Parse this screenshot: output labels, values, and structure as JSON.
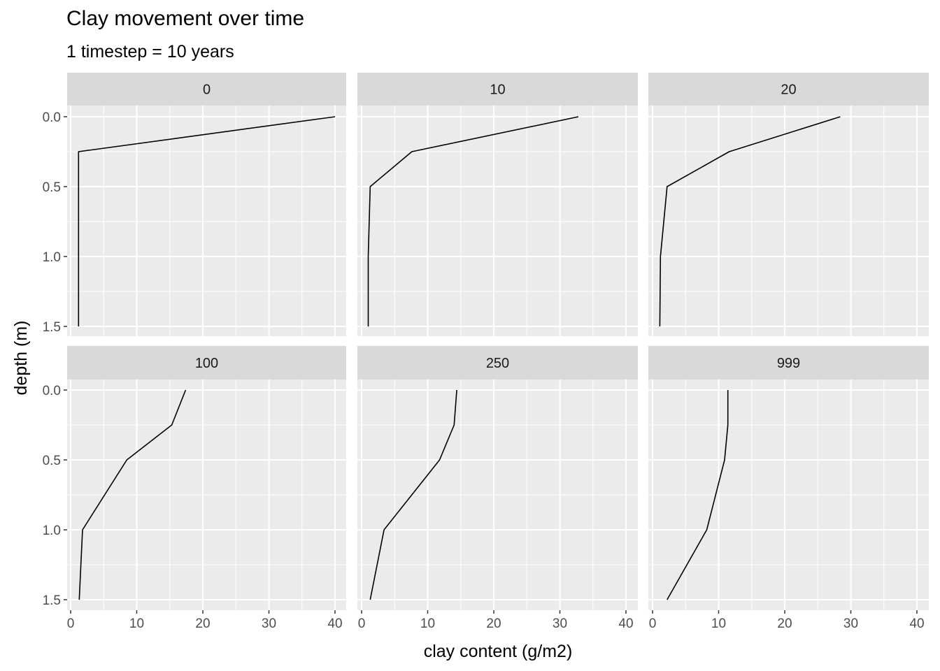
{
  "chart_data": {
    "type": "line",
    "title": "Clay movement over time",
    "subtitle": "1 timestep = 10 years",
    "xlabel": "clay content (g/m2)",
    "ylabel": "depth (m)",
    "xlim": [
      0,
      40
    ],
    "ylim": [
      1.5,
      0.0
    ],
    "y_reversed": true,
    "x_ticks": [
      0,
      10,
      20,
      30,
      40
    ],
    "y_ticks": [
      0.0,
      0.5,
      1.0,
      1.5
    ],
    "x_tick_labels": [
      "0",
      "10",
      "20",
      "30",
      "40"
    ],
    "y_tick_labels": [
      "0.0",
      "0.5",
      "1.0",
      "1.5"
    ],
    "grid": true,
    "facet_layout": {
      "rows": 2,
      "cols": 3
    },
    "panels": [
      {
        "label": "0",
        "depth": [
          0,
          0.25,
          0.5,
          1.0,
          1.5
        ],
        "clay": [
          40,
          1.2,
          1.2,
          1.2,
          1.2
        ]
      },
      {
        "label": "10",
        "depth": [
          0,
          0.25,
          0.5,
          1.0,
          1.5
        ],
        "clay": [
          32.8,
          7.6,
          1.3,
          1.0,
          1.0
        ]
      },
      {
        "label": "20",
        "depth": [
          0,
          0.25,
          0.5,
          1.0,
          1.5
        ],
        "clay": [
          28.4,
          11.6,
          2.2,
          1.2,
          1.1
        ]
      },
      {
        "label": "100",
        "depth": [
          0,
          0.25,
          0.5,
          1.0,
          1.5
        ],
        "clay": [
          17.4,
          15.3,
          8.5,
          1.8,
          1.3
        ]
      },
      {
        "label": "250",
        "depth": [
          0,
          0.25,
          0.5,
          1.0,
          1.5
        ],
        "clay": [
          14.4,
          14.0,
          11.8,
          3.4,
          1.3
        ]
      },
      {
        "label": "999",
        "depth": [
          0,
          0.25,
          0.5,
          1.0,
          1.5
        ],
        "clay": [
          11.4,
          11.4,
          10.9,
          8.2,
          2.2
        ]
      }
    ],
    "colors": {
      "panel_bg": "#ebebeb",
      "strip_bg": "#d9d9d9",
      "grid": "#ffffff",
      "line": "#000000",
      "tick_text": "#4d4d4d"
    }
  }
}
